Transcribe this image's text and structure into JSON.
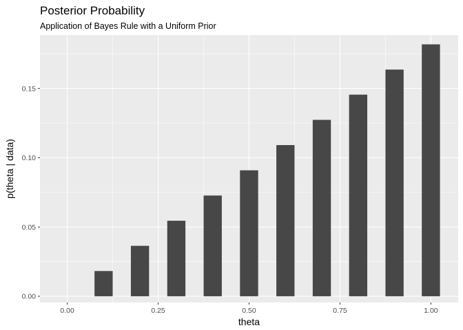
{
  "chart_data": {
    "type": "bar",
    "title": "Posterior Probability",
    "subtitle": "Application of Bayes Rule with a Uniform Prior",
    "xlabel": "theta",
    "ylabel": "p(theta | data)",
    "x": [
      0.0,
      0.1,
      0.2,
      0.3,
      0.4,
      0.5,
      0.6,
      0.7,
      0.8,
      0.9,
      1.0
    ],
    "values": [
      0.0,
      0.0182,
      0.0364,
      0.0545,
      0.0727,
      0.0909,
      0.1091,
      0.1273,
      0.1455,
      0.1636,
      0.1818
    ],
    "xlim": [
      -0.075,
      1.075
    ],
    "ylim": [
      -0.0045,
      0.1885
    ],
    "x_ticks": [
      0.0,
      0.25,
      0.5,
      0.75,
      1.0
    ],
    "x_tick_labels": [
      "0.00",
      "0.25",
      "0.50",
      "0.75",
      "1.00"
    ],
    "y_ticks": [
      0.0,
      0.05,
      0.1,
      0.15
    ],
    "y_tick_labels": [
      "0.00",
      "0.05",
      "0.10",
      "0.15"
    ],
    "bar_width": 0.05,
    "grid": true,
    "colors": {
      "panel_background": "#ebebeb",
      "grid_major": "#ffffff",
      "bar_fill": "#474747"
    }
  }
}
